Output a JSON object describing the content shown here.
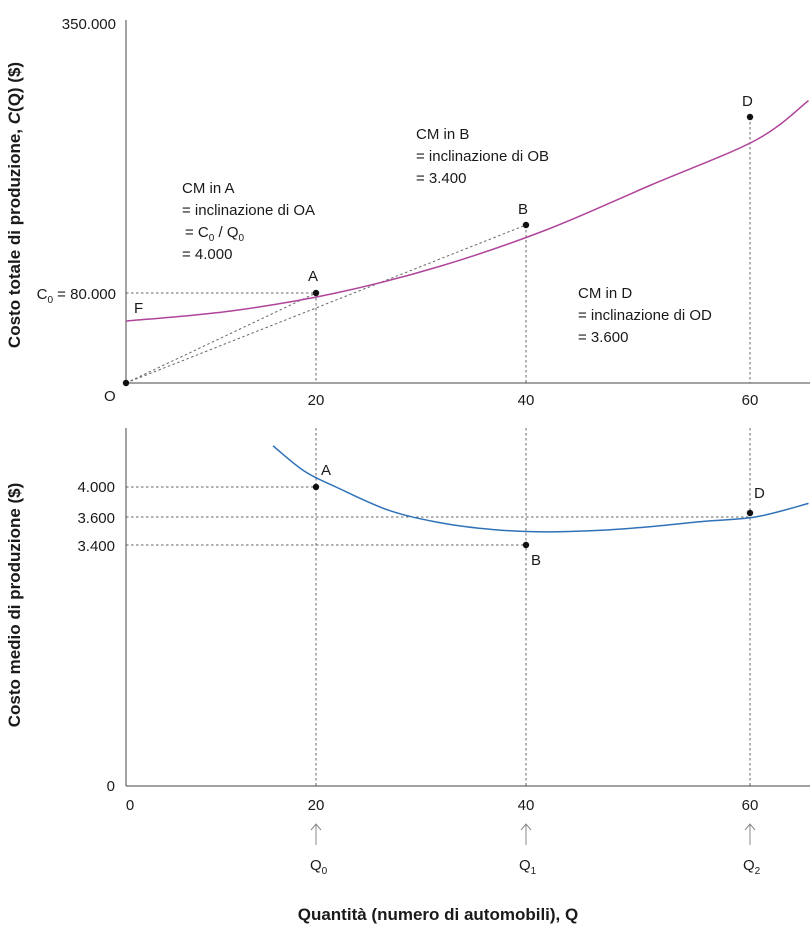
{
  "colors": {
    "total_cost_curve": "#b0449a",
    "average_cost_curve": "#2f72b8",
    "axis": "#444444",
    "guide": "#666666",
    "arrow": "#888888"
  },
  "chart_data": [
    {
      "type": "line",
      "ylabel_main": "Costo totale di produzione, ",
      "ylabel_italic": "C",
      "ylabel_tail": "(Q) ($)",
      "origin_label": "O",
      "ylim": [
        0,
        350000
      ],
      "xlim": [
        0,
        65
      ],
      "ytick_labels": {
        "top": "350.000"
      },
      "c0_label": {
        "c": "C",
        "sub": "0",
        "rest": " = 80.000"
      },
      "xtick_labels": [
        "20",
        "40",
        "60"
      ],
      "x_ticks": [
        20,
        40,
        60
      ],
      "series": [
        {
          "x": [
            0,
            10,
            20,
            30,
            40,
            50,
            60,
            65
          ],
          "y": [
            55000,
            64000,
            80000,
            104000,
            136000,
            176000,
            216000,
            251000
          ]
        }
      ],
      "points": [
        {
          "label": "A",
          "x": 20,
          "y": 80000
        },
        {
          "label": "B",
          "x": 40,
          "y": 136000
        },
        {
          "label": "D",
          "x": 60,
          "y": 216000
        }
      ],
      "fixed_cost_label": "F",
      "annotations": {
        "A": {
          "l1": "CM in A",
          "l2": "= inclinazione di OA",
          "l3a": "= C",
          "l3sub0": "0",
          "l3b": " / Q",
          "l3sub1": "0",
          "l4": "= 4.000"
        },
        "B": {
          "l1": "CM in B",
          "l2": "= inclinazione di OB",
          "l3": "= 3.400"
        },
        "D": {
          "l1": "CM in D",
          "l2": "= inclinazione di OD",
          "l3": "= 3.600"
        }
      }
    },
    {
      "type": "line",
      "ylabel": "Costo medio di produzione ($)",
      "ylim": [
        0,
        4700
      ],
      "xlim": [
        0,
        65
      ],
      "ytick_labels": [
        "4.000",
        "3.600",
        "3.400",
        "0"
      ],
      "y_ticks": [
        4000,
        3600,
        3400,
        0
      ],
      "xtick_labels": [
        "0",
        "20",
        "40",
        "60"
      ],
      "x_ticks": [
        0,
        20,
        40,
        60
      ],
      "series": [
        {
          "x": [
            14,
            17,
            20,
            25,
            30,
            35,
            40,
            45,
            50,
            55,
            60,
            65
          ],
          "y": [
            4550,
            4210,
            4000,
            3690,
            3520,
            3430,
            3400,
            3420,
            3470,
            3540,
            3600,
            3780
          ]
        }
      ],
      "points": [
        {
          "label": "A",
          "x": 20,
          "y": 4000
        },
        {
          "label": "B",
          "x": 40,
          "y": 3400
        },
        {
          "label": "D",
          "x": 60,
          "y": 3600
        }
      ],
      "q_labels": [
        {
          "q": "Q",
          "sub": "0"
        },
        {
          "q": "Q",
          "sub": "1"
        },
        {
          "q": "Q",
          "sub": "2"
        }
      ],
      "xlabel_main": "Quantità (numero di automobili), ",
      "xlabel_tail": "Q"
    }
  ]
}
